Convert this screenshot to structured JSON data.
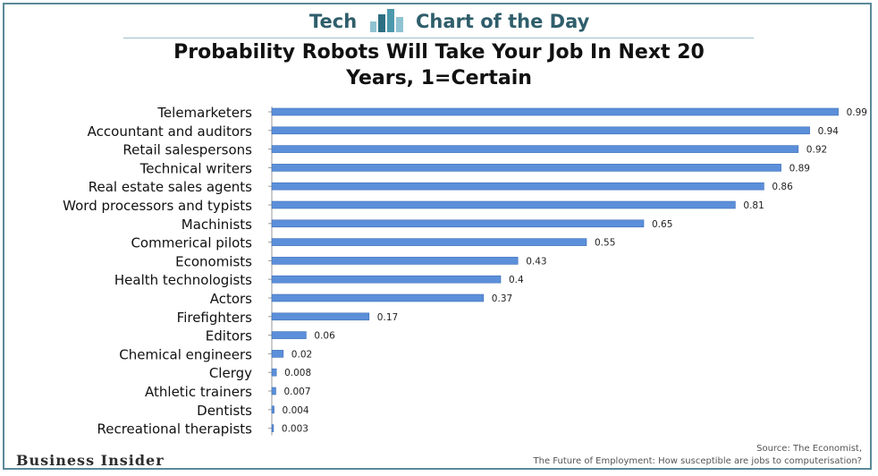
{
  "header": {
    "left_word": "Tech",
    "right_word": "Chart of the Day",
    "logo_icon": "bar-logo-icon"
  },
  "footer": {
    "brand": "Business Insider",
    "source_line1": "Source: The Economist,",
    "source_line2": "The Future of Employment: How susceptible are jobs to computerisation?"
  },
  "colors": {
    "bar": "#5b8fd9",
    "bar_edge": "#3f6fb8",
    "accent": "#2f5e6b",
    "logo_light": "#8fc3d1",
    "logo_dark": "#2d6f82"
  },
  "chart_data": {
    "type": "bar",
    "orientation": "horizontal",
    "title_line1": "Probability Robots Will Take Your Job In Next 20",
    "title_line2": "Years, 1=Certain",
    "xlim": [
      0,
      1
    ],
    "grid": false,
    "categories": [
      "Telemarketers",
      "Accountant and auditors",
      "Retail salespersons",
      "Technical writers",
      "Real estate sales agents",
      "Word processors and typists",
      "Machinists",
      "Commerical pilots",
      "Economists",
      "Health technologists",
      "Actors",
      "Firefighters",
      "Editors",
      "Chemical engineers",
      "Clergy",
      "Athletic trainers",
      "Dentists",
      "Recreational therapists"
    ],
    "values": [
      0.99,
      0.94,
      0.92,
      0.89,
      0.86,
      0.81,
      0.65,
      0.55,
      0.43,
      0.4,
      0.37,
      0.17,
      0.06,
      0.02,
      0.008,
      0.007,
      0.004,
      0.003
    ],
    "value_labels": [
      "0.99",
      "0.94",
      "0.92",
      "0.89",
      "0.86",
      "0.81",
      "0.65",
      "0.55",
      "0.43",
      "0.4",
      "0.37",
      "0.17",
      "0.06",
      "0.02",
      "0.008",
      "0.007",
      "0.004",
      "0.003"
    ]
  }
}
